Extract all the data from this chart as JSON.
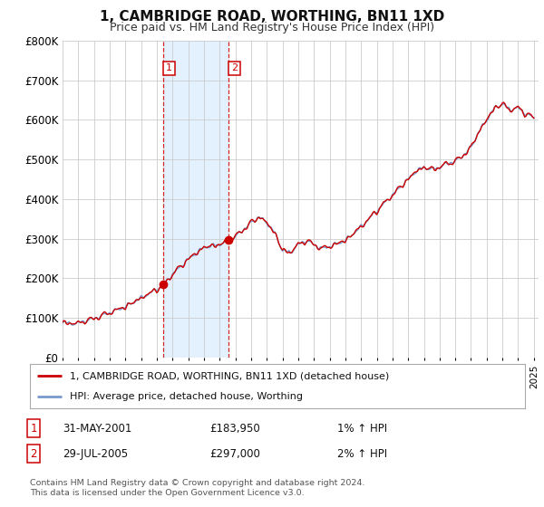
{
  "title": "1, CAMBRIDGE ROAD, WORTHING, BN11 1XD",
  "subtitle": "Price paid vs. HM Land Registry's House Price Index (HPI)",
  "ylim": [
    0,
    800000
  ],
  "yticks": [
    0,
    100000,
    200000,
    300000,
    400000,
    500000,
    600000,
    700000,
    800000
  ],
  "ytick_labels": [
    "£0",
    "£100K",
    "£200K",
    "£300K",
    "£400K",
    "£500K",
    "£600K",
    "£700K",
    "£800K"
  ],
  "xlim_start": 1995.0,
  "xlim_end": 2025.3,
  "sale1_date": 2001.42,
  "sale1_price": 183950,
  "sale1_label": "31-MAY-2001",
  "sale1_price_label": "£183,950",
  "sale1_hpi": "1% ↑ HPI",
  "sale2_date": 2005.58,
  "sale2_price": 297000,
  "sale2_label": "29-JUL-2005",
  "sale2_price_label": "£297,000",
  "sale2_hpi": "2% ↑ HPI",
  "line_color_price": "#cc0000",
  "line_color_hpi": "#7799cc",
  "shade_color": "#ddeeff",
  "legend_label_price": "1, CAMBRIDGE ROAD, WORTHING, BN11 1XD (detached house)",
  "legend_label_hpi": "HPI: Average price, detached house, Worthing",
  "footer1": "Contains HM Land Registry data © Crown copyright and database right 2024.",
  "footer2": "This data is licensed under the Open Government Licence v3.0.",
  "background_color": "#ffffff",
  "plot_bg_color": "#ffffff",
  "grid_color": "#cccccc"
}
